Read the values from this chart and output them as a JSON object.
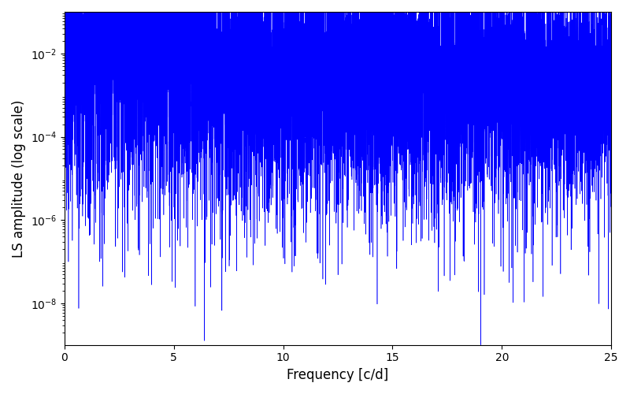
{
  "title": "",
  "xlabel": "Frequency [c/d]",
  "ylabel": "LS amplitude (log scale)",
  "xlim": [
    0,
    25
  ],
  "ylim": [
    1e-09,
    0.1
  ],
  "yticks": [
    1e-08,
    1e-06,
    0.0001,
    0.01
  ],
  "line_color": "#0000ff",
  "line_width": 0.4,
  "background_color": "#ffffff",
  "freq_max": 25.0,
  "n_points": 10000,
  "seed": 42,
  "figsize": [
    8.0,
    5.0
  ],
  "dpi": 100,
  "envelope_peak": 0.022,
  "envelope_decay": 0.18,
  "envelope_power": 1.4,
  "noise_floor": 5e-05,
  "spike_log_std_low": 2.0,
  "spike_log_std_high": 1.2,
  "dip_prob": 0.03,
  "dip_factor_min": 0.0001,
  "dip_factor_max": 0.01
}
